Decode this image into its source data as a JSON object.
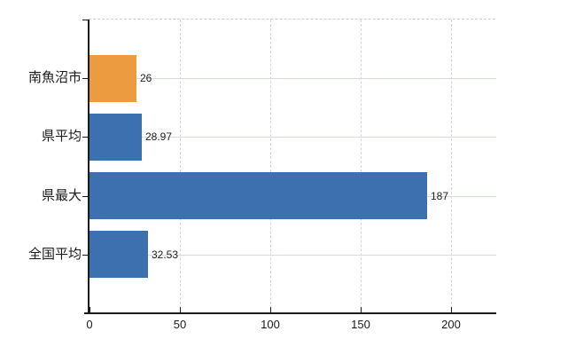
{
  "chart_data": {
    "type": "bar",
    "orientation": "horizontal",
    "title": "",
    "xlabel": "",
    "ylabel": "",
    "categories": [
      "南魚沼市",
      "県平均",
      "県最大",
      "全国平均"
    ],
    "values": [
      26,
      28.97,
      187,
      32.53
    ],
    "value_labels": [
      "26",
      "28.97",
      "187",
      "32.53"
    ],
    "bar_colors": [
      "#ec9b41",
      "#3d70af",
      "#3d70af",
      "#3d70af"
    ],
    "xticks": [
      0,
      50,
      100,
      150,
      200
    ],
    "xtick_labels": [
      "0",
      "50",
      "100",
      "150",
      "200"
    ],
    "xlim": [
      0,
      225
    ],
    "grid": true,
    "legend": null,
    "colors": {
      "accent_orange": "#ec9b41",
      "accent_blue": "#3d70af",
      "axis": "#1a1a1a",
      "grid_h": "#d4dcd4",
      "grid_v": "#d9d2da",
      "text": "#222222",
      "background": "#ffffff"
    }
  }
}
